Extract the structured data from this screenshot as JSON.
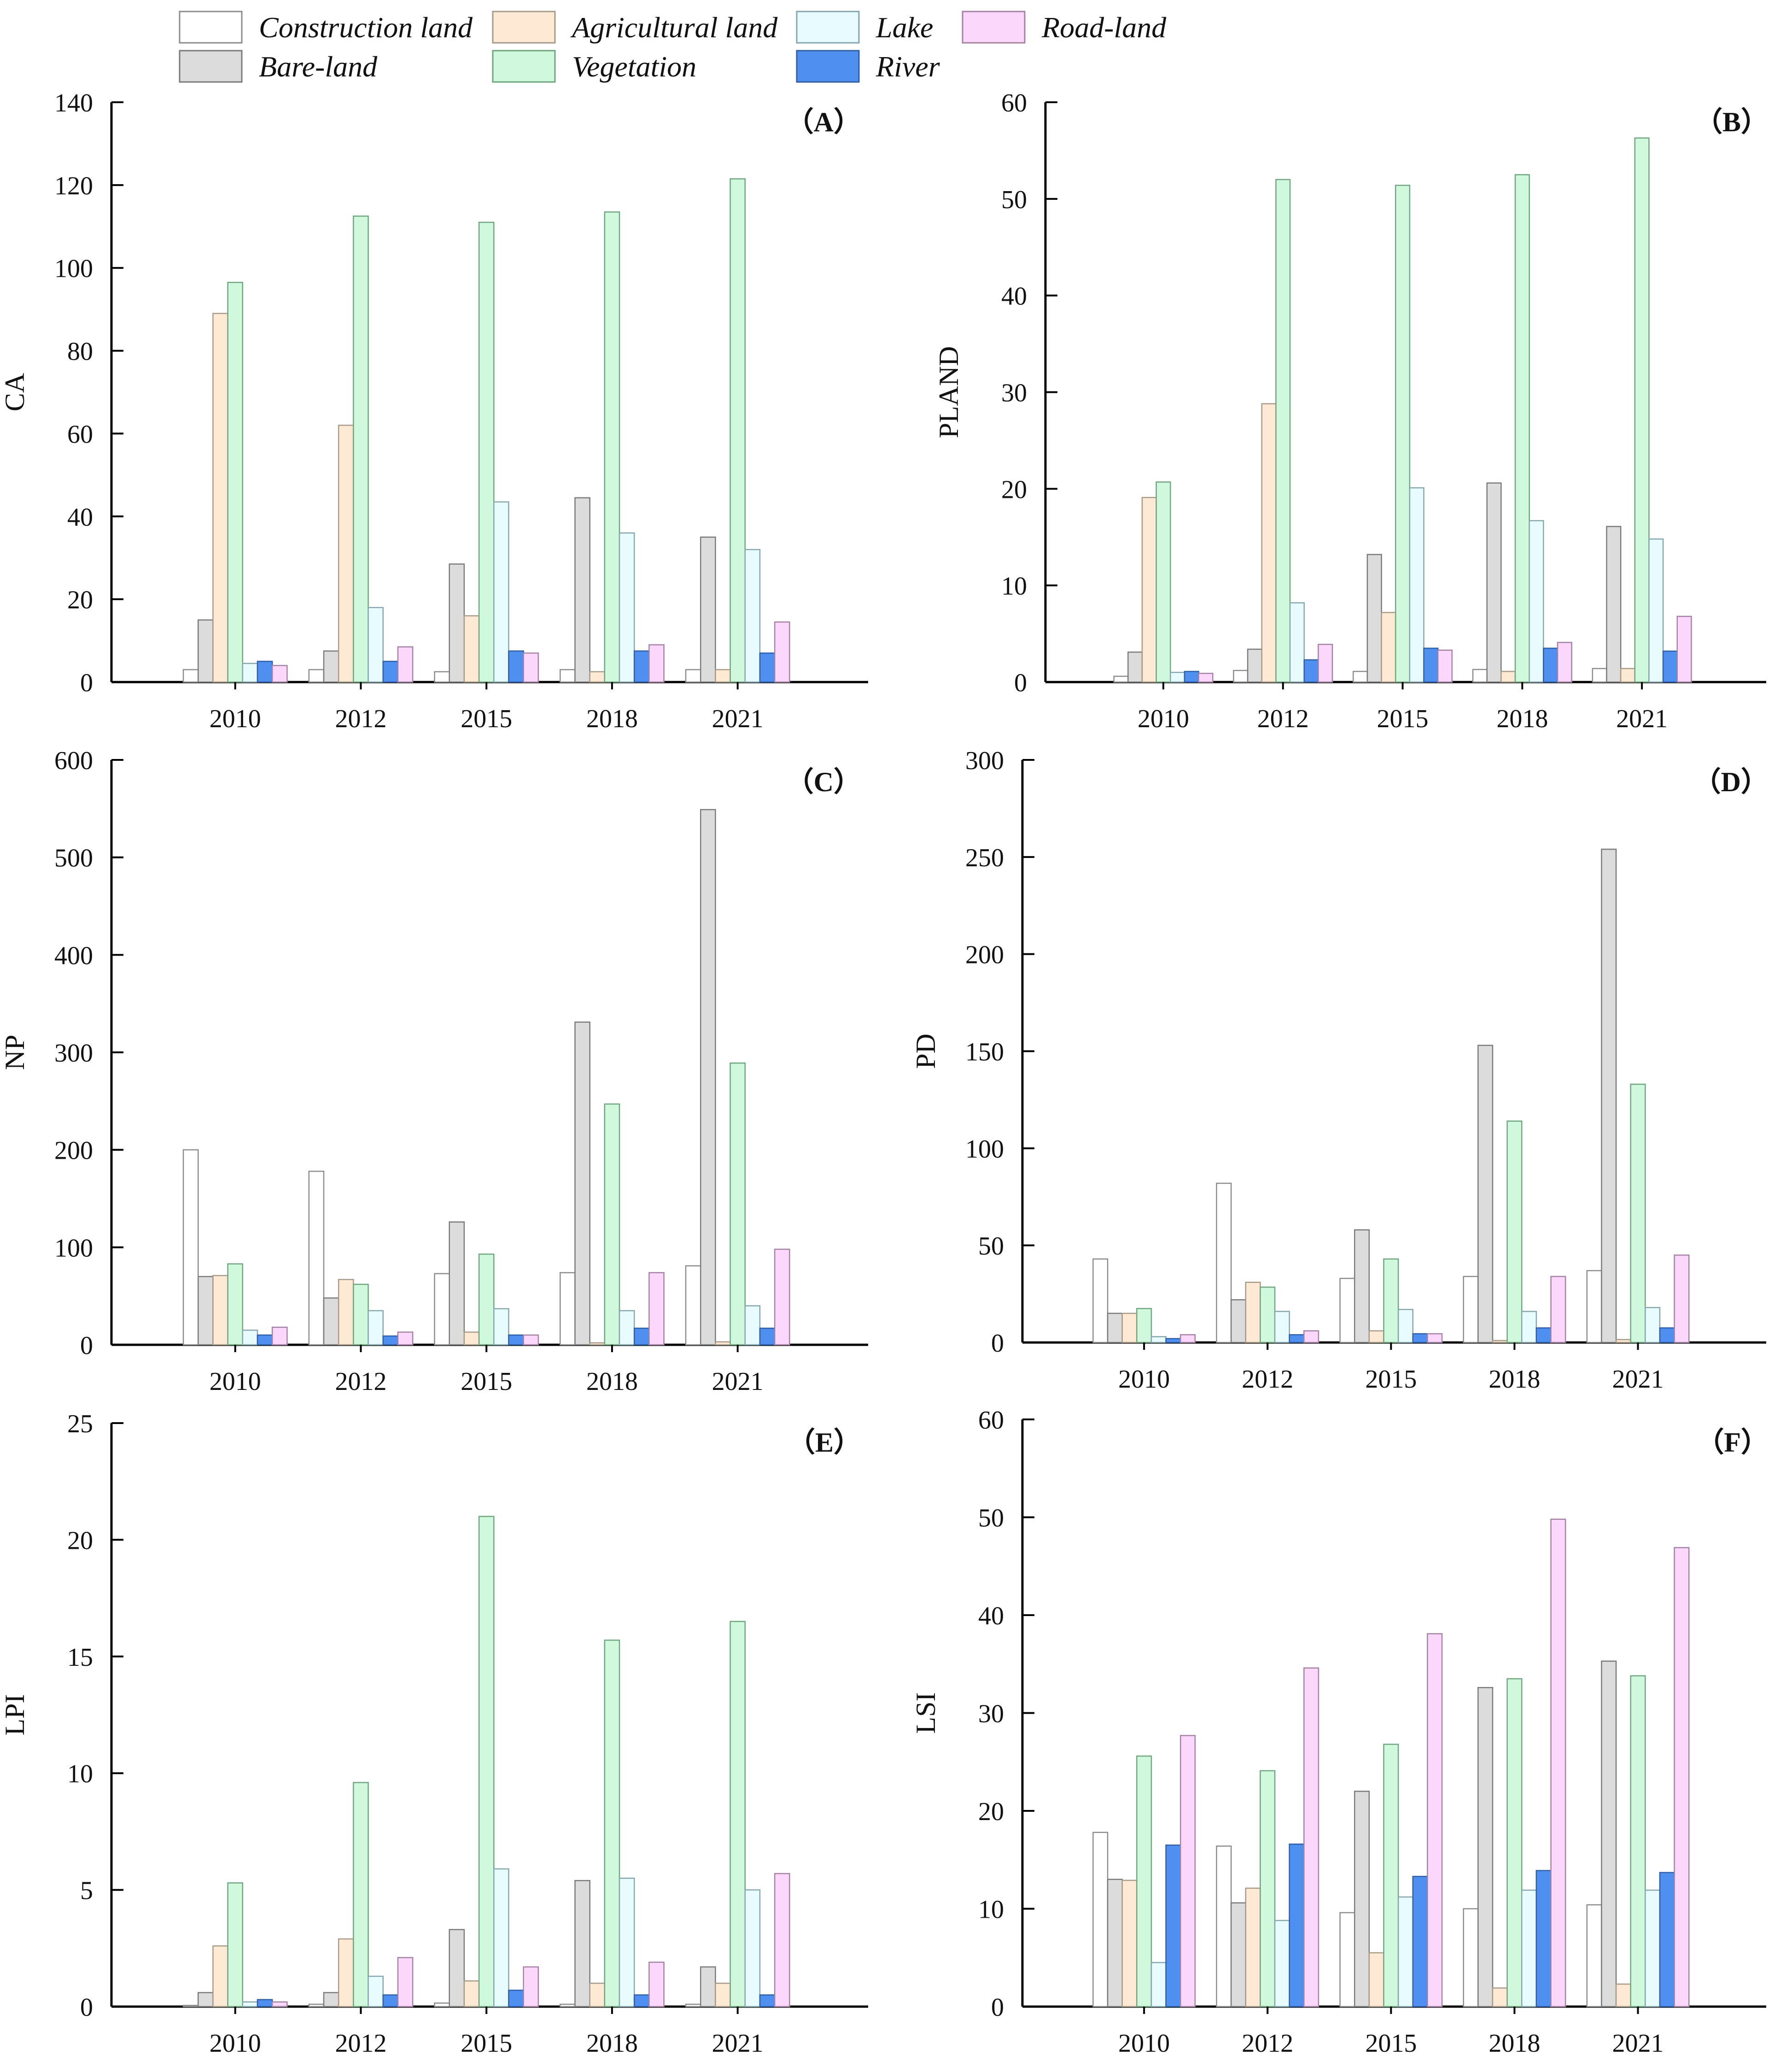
{
  "legend": {
    "items": [
      {
        "name": "Construction land",
        "color": "#ffffff",
        "stroke": "#8c8c8c"
      },
      {
        "name": "Bare-land",
        "color": "#dcdcdc",
        "stroke": "#7a7a7a"
      },
      {
        "name": "Agricultural land",
        "color": "#fde9d4",
        "stroke": "#a89a88"
      },
      {
        "name": "Vegetation",
        "color": "#cff8dc",
        "stroke": "#6fa57f"
      },
      {
        "name": "Lake",
        "color": "#e8fbff",
        "stroke": "#86a6ad"
      },
      {
        "name": "River",
        "color": "#4f8ff0",
        "stroke": "#2e5fa6"
      },
      {
        "name": "Road-land",
        "color": "#fbd8fb",
        "stroke": "#a382a3"
      }
    ]
  },
  "chart_data": [
    {
      "id": "A",
      "panel_label": "（A）",
      "type": "bar",
      "ylabel": "CA",
      "categories": [
        "2010",
        "2012",
        "2015",
        "2018",
        "2021"
      ],
      "ylim": [
        0,
        140
      ],
      "yticks": [
        "0",
        "20",
        "40",
        "60",
        "80",
        "100",
        "120",
        "140"
      ],
      "series": [
        {
          "name": "Construction land",
          "values": [
            3,
            3,
            2.5,
            3,
            3
          ]
        },
        {
          "name": "Bare-land",
          "values": [
            15,
            7.5,
            28.5,
            44.5,
            35
          ]
        },
        {
          "name": "Agricultural land",
          "values": [
            89,
            62,
            16,
            2.5,
            3
          ]
        },
        {
          "name": "Vegetation",
          "values": [
            96.5,
            112.5,
            111,
            113.5,
            121.5
          ]
        },
        {
          "name": "Lake",
          "values": [
            4.5,
            18,
            43.5,
            36,
            32
          ]
        },
        {
          "name": "River",
          "values": [
            5,
            5,
            7.5,
            7.5,
            7
          ]
        },
        {
          "name": "Road-land",
          "values": [
            4,
            8.5,
            7,
            9,
            14.5
          ]
        }
      ]
    },
    {
      "id": "B",
      "panel_label": "（B）",
      "type": "bar",
      "ylabel": "PLAND",
      "categories": [
        "2010",
        "2012",
        "2015",
        "2018",
        "2021"
      ],
      "ylim": [
        0,
        60
      ],
      "yticks": [
        "0",
        "10",
        "20",
        "30",
        "40",
        "50",
        "60"
      ],
      "series": [
        {
          "name": "Construction land",
          "values": [
            0.6,
            1.2,
            1.1,
            1.3,
            1.4
          ]
        },
        {
          "name": "Bare-land",
          "values": [
            3.1,
            3.4,
            13.2,
            20.6,
            16.1
          ]
        },
        {
          "name": "Agricultural land",
          "values": [
            19.1,
            28.8,
            7.2,
            1.1,
            1.4
          ]
        },
        {
          "name": "Vegetation",
          "values": [
            20.7,
            52,
            51.4,
            52.5,
            56.3
          ]
        },
        {
          "name": "Lake",
          "values": [
            1,
            8.2,
            20.1,
            16.7,
            14.8
          ]
        },
        {
          "name": "River",
          "values": [
            1.1,
            2.3,
            3.5,
            3.5,
            3.2
          ]
        },
        {
          "name": "Road-land",
          "values": [
            0.9,
            3.9,
            3.3,
            4.1,
            6.8
          ]
        }
      ]
    },
    {
      "id": "C",
      "panel_label": "（C）",
      "type": "bar",
      "ylabel": "NP",
      "categories": [
        "2010",
        "2012",
        "2015",
        "2018",
        "2021"
      ],
      "ylim": [
        0,
        600
      ],
      "yticks": [
        "0",
        "100",
        "200",
        "300",
        "400",
        "500",
        "600"
      ],
      "series": [
        {
          "name": "Construction land",
          "values": [
            200,
            178,
            73,
            74,
            81
          ]
        },
        {
          "name": "Bare-land",
          "values": [
            70,
            48,
            126,
            331,
            549
          ]
        },
        {
          "name": "Agricultural land",
          "values": [
            71,
            67,
            13,
            2,
            3
          ]
        },
        {
          "name": "Vegetation",
          "values": [
            83,
            62,
            93,
            247,
            289
          ]
        },
        {
          "name": "Lake",
          "values": [
            15,
            35,
            37,
            35,
            40
          ]
        },
        {
          "name": "River",
          "values": [
            10,
            9,
            10,
            17,
            17
          ]
        },
        {
          "name": "Road-land",
          "values": [
            18,
            13,
            10,
            74,
            98
          ]
        }
      ]
    },
    {
      "id": "D",
      "panel_label": "（D）",
      "type": "bar",
      "ylabel": "PD",
      "categories": [
        "2010",
        "2012",
        "2015",
        "2018",
        "2021"
      ],
      "ylim": [
        0,
        300
      ],
      "yticks": [
        "0",
        "50",
        "100",
        "150",
        "200",
        "250",
        "300"
      ],
      "series": [
        {
          "name": "Construction land",
          "values": [
            43,
            82,
            33,
            34,
            37
          ]
        },
        {
          "name": "Bare-land",
          "values": [
            15,
            22,
            58,
            153,
            254
          ]
        },
        {
          "name": "Agricultural land",
          "values": [
            15,
            31,
            6,
            1,
            1.5
          ]
        },
        {
          "name": "Vegetation",
          "values": [
            17.5,
            28.5,
            43,
            114,
            133
          ]
        },
        {
          "name": "Lake",
          "values": [
            3,
            16,
            17,
            16,
            18
          ]
        },
        {
          "name": "River",
          "values": [
            2,
            4,
            4.5,
            7.5,
            7.5
          ]
        },
        {
          "name": "Road-land",
          "values": [
            4,
            6,
            4.5,
            34,
            45
          ]
        }
      ]
    },
    {
      "id": "E",
      "panel_label": "（E）",
      "type": "bar",
      "ylabel": "LPI",
      "categories": [
        "2010",
        "2012",
        "2015",
        "2018",
        "2021"
      ],
      "ylim": [
        0,
        25
      ],
      "yticks": [
        "0",
        "5",
        "10",
        "15",
        "20",
        "25"
      ],
      "series": [
        {
          "name": "Construction land",
          "values": [
            0.05,
            0.1,
            0.15,
            0.1,
            0.1
          ]
        },
        {
          "name": "Bare-land",
          "values": [
            0.6,
            0.6,
            3.3,
            5.4,
            1.7
          ]
        },
        {
          "name": "Agricultural land",
          "values": [
            2.6,
            2.9,
            1.1,
            1,
            1
          ]
        },
        {
          "name": "Vegetation",
          "values": [
            5.3,
            9.6,
            21,
            15.7,
            16.5
          ]
        },
        {
          "name": "Lake",
          "values": [
            0.2,
            1.3,
            5.9,
            5.5,
            5
          ]
        },
        {
          "name": "River",
          "values": [
            0.3,
            0.5,
            0.7,
            0.5,
            0.5
          ]
        },
        {
          "name": "Road-land",
          "values": [
            0.2,
            2.1,
            1.7,
            1.9,
            5.7
          ]
        }
      ]
    },
    {
      "id": "F",
      "panel_label": "（F）",
      "type": "bar",
      "ylabel": "LSI",
      "categories": [
        "2010",
        "2012",
        "2015",
        "2018",
        "2021"
      ],
      "ylim": [
        0,
        60
      ],
      "yticks": [
        "0",
        "10",
        "20",
        "30",
        "40",
        "50",
        "60"
      ],
      "series": [
        {
          "name": "Construction land",
          "values": [
            17.8,
            16.4,
            9.6,
            10,
            10.4
          ]
        },
        {
          "name": "Bare-land",
          "values": [
            13,
            10.6,
            22,
            32.6,
            35.3
          ]
        },
        {
          "name": "Agricultural land",
          "values": [
            12.9,
            12.1,
            5.5,
            1.9,
            2.3
          ]
        },
        {
          "name": "Vegetation",
          "values": [
            25.6,
            24.1,
            26.8,
            33.5,
            33.8
          ]
        },
        {
          "name": "Lake",
          "values": [
            4.5,
            8.8,
            11.2,
            11.9,
            11.9
          ]
        },
        {
          "name": "River",
          "values": [
            16.5,
            16.6,
            13.3,
            13.9,
            13.7
          ]
        },
        {
          "name": "Road-land",
          "values": [
            27.7,
            34.6,
            38.1,
            49.8,
            46.9
          ]
        }
      ]
    }
  ]
}
